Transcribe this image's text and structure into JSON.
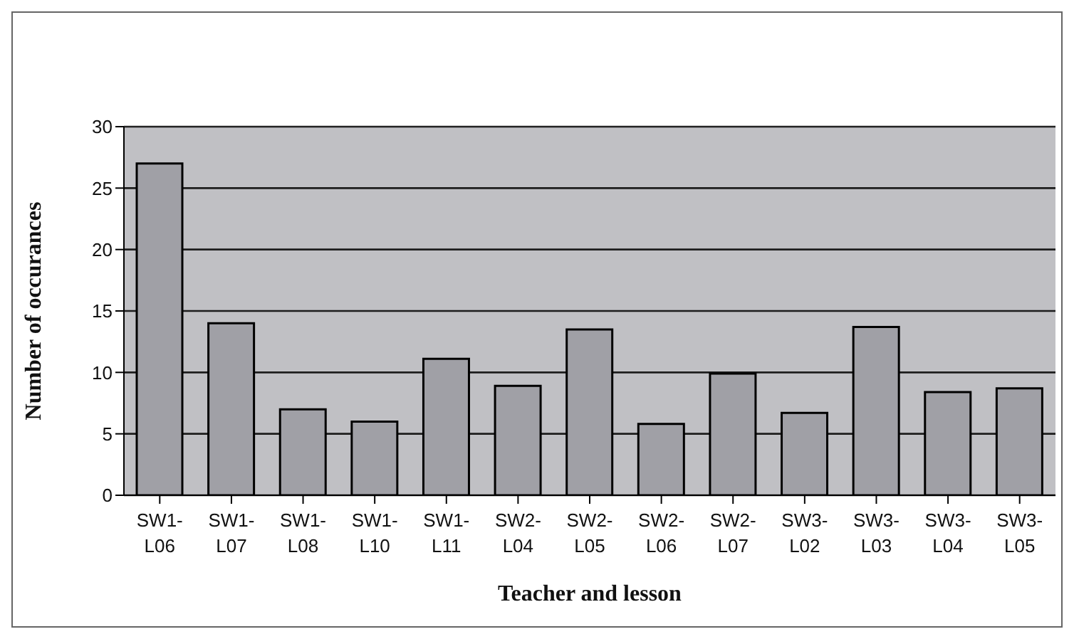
{
  "chart_data": {
    "type": "bar",
    "xlabel": "Teacher and lesson",
    "ylabel": "Number of occurances",
    "categories": [
      "SW1-L06",
      "SW1-L07",
      "SW1-L08",
      "SW1-L10",
      "SW1-L11",
      "SW2-L04",
      "SW2-L05",
      "SW2-L06",
      "SW2-L07",
      "SW3-L02",
      "SW3-L03",
      "SW3-L04",
      "SW3-L05"
    ],
    "values": [
      27,
      14,
      7,
      6,
      11.1,
      8.9,
      13.5,
      5.8,
      9.9,
      6.7,
      13.7,
      8.4,
      8.7
    ],
    "color": "#a0a0a6",
    "ylim": [
      0,
      30
    ],
    "yticks": [
      0,
      5,
      10,
      15,
      20,
      25,
      30
    ],
    "grid": "y"
  }
}
